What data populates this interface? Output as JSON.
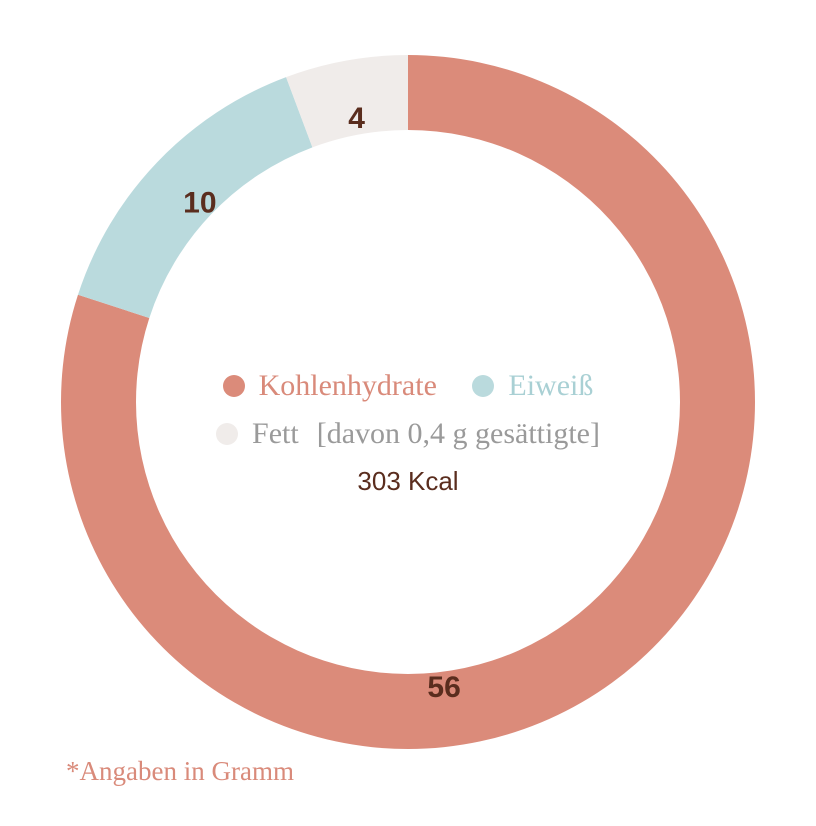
{
  "chart_data": {
    "type": "pie",
    "variant": "donut",
    "title": "",
    "slices": [
      {
        "name": "Kohlenhydrate",
        "value": 56,
        "label": "56",
        "color": "#db8b7a"
      },
      {
        "name": "Eiweiß",
        "value": 10,
        "label": "10",
        "color": "#badadd"
      },
      {
        "name": "Fett",
        "value": 4,
        "label": "4",
        "color": "#f0ecea"
      }
    ],
    "legend_placement": "center",
    "legend": {
      "kohlenhydrate": "Kohlenhydrate",
      "eiweiss": "Eiweiß",
      "fett": "Fett",
      "fett_note": "[davon 0,4 g gesättigte]"
    },
    "center_text": "303 Kcal",
    "footnote": "*Angaben in Gramm"
  },
  "colors": {
    "kohlenhydrate": "#db8b7a",
    "eiweiss": "#badadd",
    "fett": "#f0ecea",
    "kohlenhydrate_text": "#d98a7a",
    "eiweiss_text": "#a9d0d4",
    "fett_text": "#9a9a9a",
    "label_text": "#5a2d1e"
  }
}
